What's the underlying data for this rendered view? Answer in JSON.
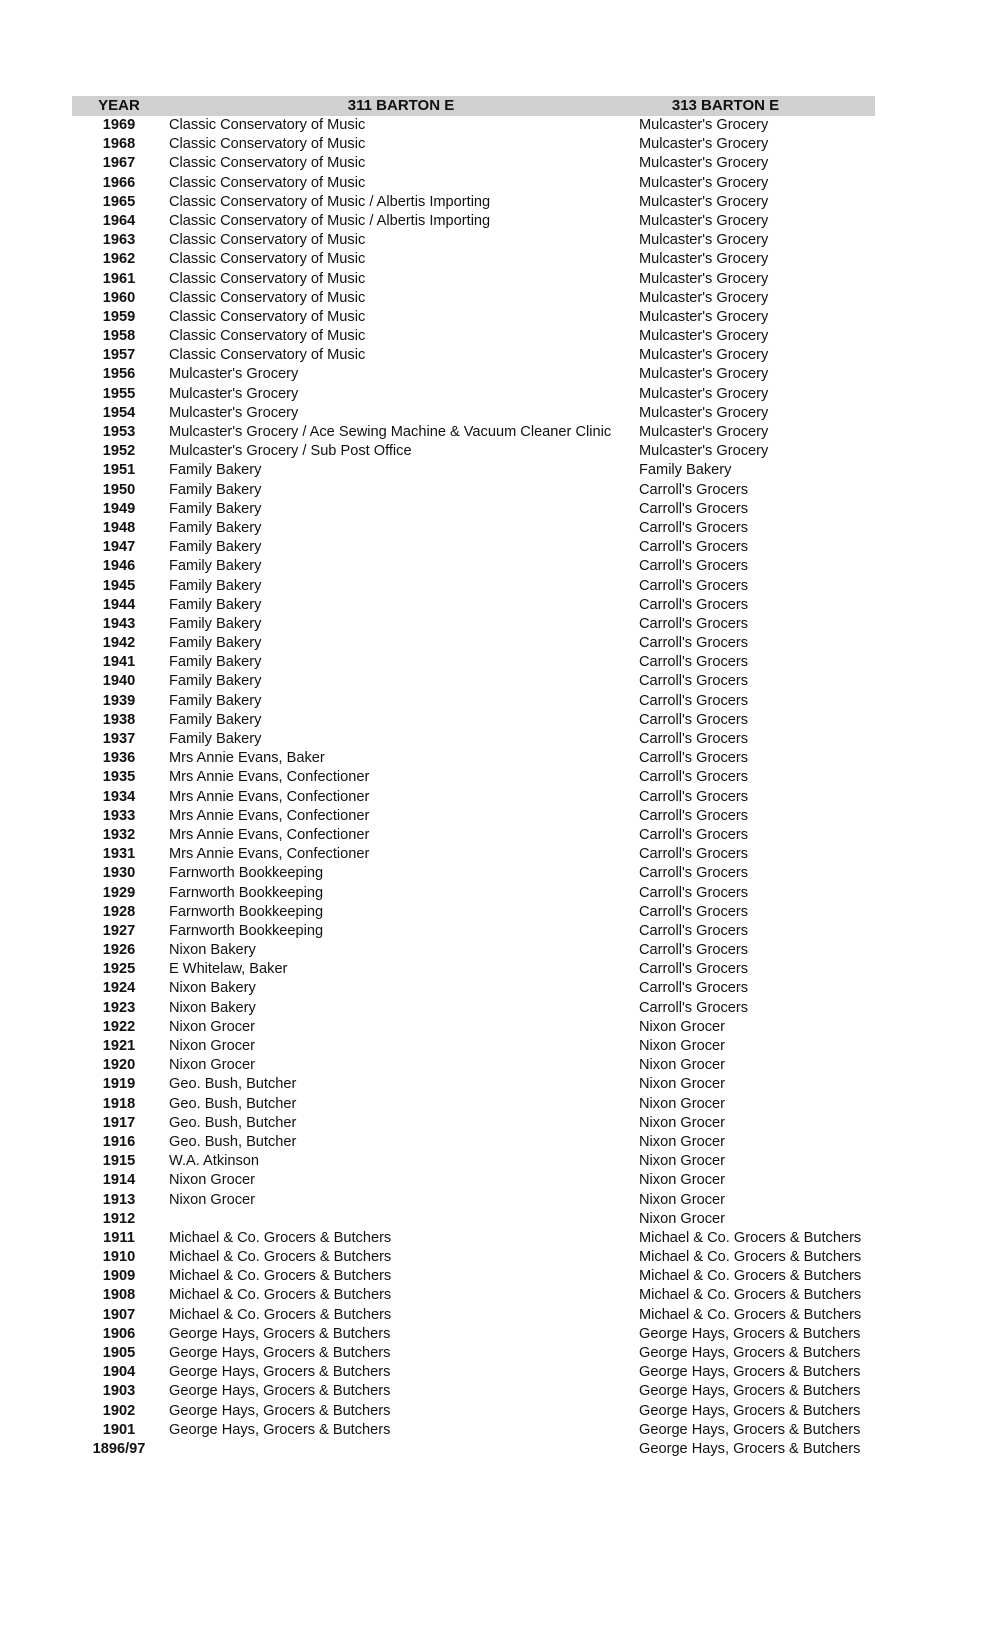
{
  "header": {
    "year": "YEAR",
    "col1": "311 BARTON E",
    "col2": "313 BARTON E"
  },
  "rows": [
    [
      "1969",
      "Classic Conservatory of Music",
      "Mulcaster's Grocery"
    ],
    [
      "1968",
      "Classic Conservatory of Music",
      "Mulcaster's Grocery"
    ],
    [
      "1967",
      "Classic Conservatory of Music",
      "Mulcaster's Grocery"
    ],
    [
      "1966",
      "Classic Conservatory of Music",
      "Mulcaster's Grocery"
    ],
    [
      "1965",
      "Classic Conservatory of Music / Albertis Importing",
      "Mulcaster's Grocery"
    ],
    [
      "1964",
      "Classic Conservatory of Music / Albertis Importing",
      "Mulcaster's Grocery"
    ],
    [
      "1963",
      "Classic Conservatory of Music",
      "Mulcaster's Grocery"
    ],
    [
      "1962",
      "Classic Conservatory of Music",
      "Mulcaster's Grocery"
    ],
    [
      "1961",
      "Classic Conservatory of Music",
      "Mulcaster's Grocery"
    ],
    [
      "1960",
      "Classic Conservatory of Music",
      "Mulcaster's Grocery"
    ],
    [
      "1959",
      "Classic Conservatory of Music",
      "Mulcaster's Grocery"
    ],
    [
      "1958",
      "Classic Conservatory of Music",
      "Mulcaster's Grocery"
    ],
    [
      "1957",
      "Classic Conservatory of Music",
      "Mulcaster's Grocery"
    ],
    [
      "1956",
      "Mulcaster's Grocery",
      "Mulcaster's Grocery"
    ],
    [
      "1955",
      "Mulcaster's Grocery",
      "Mulcaster's Grocery"
    ],
    [
      "1954",
      "Mulcaster's Grocery",
      "Mulcaster's Grocery"
    ],
    [
      "1953",
      "Mulcaster's Grocery / Ace Sewing Machine & Vacuum Cleaner Clinic",
      "Mulcaster's Grocery"
    ],
    [
      "1952",
      "Mulcaster's Grocery / Sub Post Office",
      "Mulcaster's Grocery"
    ],
    [
      "1951",
      "Family Bakery",
      "Family Bakery"
    ],
    [
      "1950",
      "Family Bakery",
      "Carroll's Grocers"
    ],
    [
      "1949",
      "Family Bakery",
      "Carroll's Grocers"
    ],
    [
      "1948",
      "Family Bakery",
      "Carroll's Grocers"
    ],
    [
      "1947",
      "Family Bakery",
      "Carroll's Grocers"
    ],
    [
      "1946",
      "Family Bakery",
      "Carroll's Grocers"
    ],
    [
      "1945",
      "Family Bakery",
      "Carroll's Grocers"
    ],
    [
      "1944",
      "Family Bakery",
      "Carroll's Grocers"
    ],
    [
      "1943",
      "Family Bakery",
      "Carroll's Grocers"
    ],
    [
      "1942",
      "Family Bakery",
      "Carroll's Grocers"
    ],
    [
      "1941",
      "Family Bakery",
      "Carroll's Grocers"
    ],
    [
      "1940",
      "Family Bakery",
      "Carroll's Grocers"
    ],
    [
      "1939",
      "Family Bakery",
      "Carroll's Grocers"
    ],
    [
      "1938",
      "Family Bakery",
      "Carroll's Grocers"
    ],
    [
      "1937",
      "Family Bakery",
      "Carroll's Grocers"
    ],
    [
      "1936",
      "Mrs Annie Evans, Baker",
      "Carroll's Grocers"
    ],
    [
      "1935",
      "Mrs Annie Evans, Confectioner",
      "Carroll's Grocers"
    ],
    [
      "1934",
      "Mrs Annie Evans, Confectioner",
      "Carroll's Grocers"
    ],
    [
      "1933",
      "Mrs Annie Evans, Confectioner",
      "Carroll's Grocers"
    ],
    [
      "1932",
      "Mrs Annie Evans, Confectioner",
      "Carroll's Grocers"
    ],
    [
      "1931",
      "Mrs Annie Evans, Confectioner",
      "Carroll's Grocers"
    ],
    [
      "1930",
      "Farnworth Bookkeeping",
      "Carroll's Grocers"
    ],
    [
      "1929",
      "Farnworth Bookkeeping",
      "Carroll's Grocers"
    ],
    [
      "1928",
      "Farnworth Bookkeeping",
      "Carroll's Grocers"
    ],
    [
      "1927",
      "Farnworth Bookkeeping",
      "Carroll's Grocers"
    ],
    [
      "1926",
      "Nixon Bakery",
      "Carroll's Grocers"
    ],
    [
      "1925",
      "E Whitelaw, Baker",
      "Carroll's Grocers"
    ],
    [
      "1924",
      "Nixon Bakery",
      "Carroll's Grocers"
    ],
    [
      "1923",
      "Nixon Bakery",
      "Carroll's Grocers"
    ],
    [
      "1922",
      "Nixon Grocer",
      "Nixon Grocer"
    ],
    [
      "1921",
      "Nixon Grocer",
      "Nixon Grocer"
    ],
    [
      "1920",
      "Nixon Grocer",
      "Nixon Grocer"
    ],
    [
      "1919",
      "Geo. Bush, Butcher",
      "Nixon Grocer"
    ],
    [
      "1918",
      "Geo. Bush, Butcher",
      "Nixon Grocer"
    ],
    [
      "1917",
      "Geo. Bush, Butcher",
      "Nixon Grocer"
    ],
    [
      "1916",
      "Geo. Bush, Butcher",
      "Nixon Grocer"
    ],
    [
      "1915",
      "W.A. Atkinson",
      "Nixon Grocer"
    ],
    [
      "1914",
      "Nixon Grocer",
      "Nixon Grocer"
    ],
    [
      "1913",
      "Nixon Grocer",
      "Nixon Grocer"
    ],
    [
      "1912",
      "",
      "Nixon Grocer"
    ],
    [
      "1911",
      "Michael & Co. Grocers & Butchers",
      "Michael & Co. Grocers & Butchers"
    ],
    [
      "1910",
      "Michael & Co. Grocers & Butchers",
      "Michael & Co. Grocers & Butchers"
    ],
    [
      "1909",
      "Michael & Co. Grocers & Butchers",
      "Michael & Co. Grocers & Butchers"
    ],
    [
      "1908",
      "Michael & Co. Grocers & Butchers",
      "Michael & Co. Grocers & Butchers"
    ],
    [
      "1907",
      "Michael & Co. Grocers & Butchers",
      "Michael & Co. Grocers & Butchers"
    ],
    [
      "1906",
      "George Hays, Grocers & Butchers",
      "George Hays, Grocers & Butchers"
    ],
    [
      "1905",
      "George Hays, Grocers & Butchers",
      "George Hays, Grocers & Butchers"
    ],
    [
      "1904",
      "George Hays, Grocers & Butchers",
      "George Hays, Grocers & Butchers"
    ],
    [
      "1903",
      "George Hays, Grocers & Butchers",
      "George Hays, Grocers & Butchers"
    ],
    [
      "1902",
      "George Hays, Grocers & Butchers",
      "George Hays, Grocers & Butchers"
    ],
    [
      "1901",
      "George Hays, Grocers & Butchers",
      "George Hays, Grocers & Butchers"
    ],
    [
      "1896/97",
      "",
      "George Hays, Grocers & Butchers"
    ]
  ]
}
